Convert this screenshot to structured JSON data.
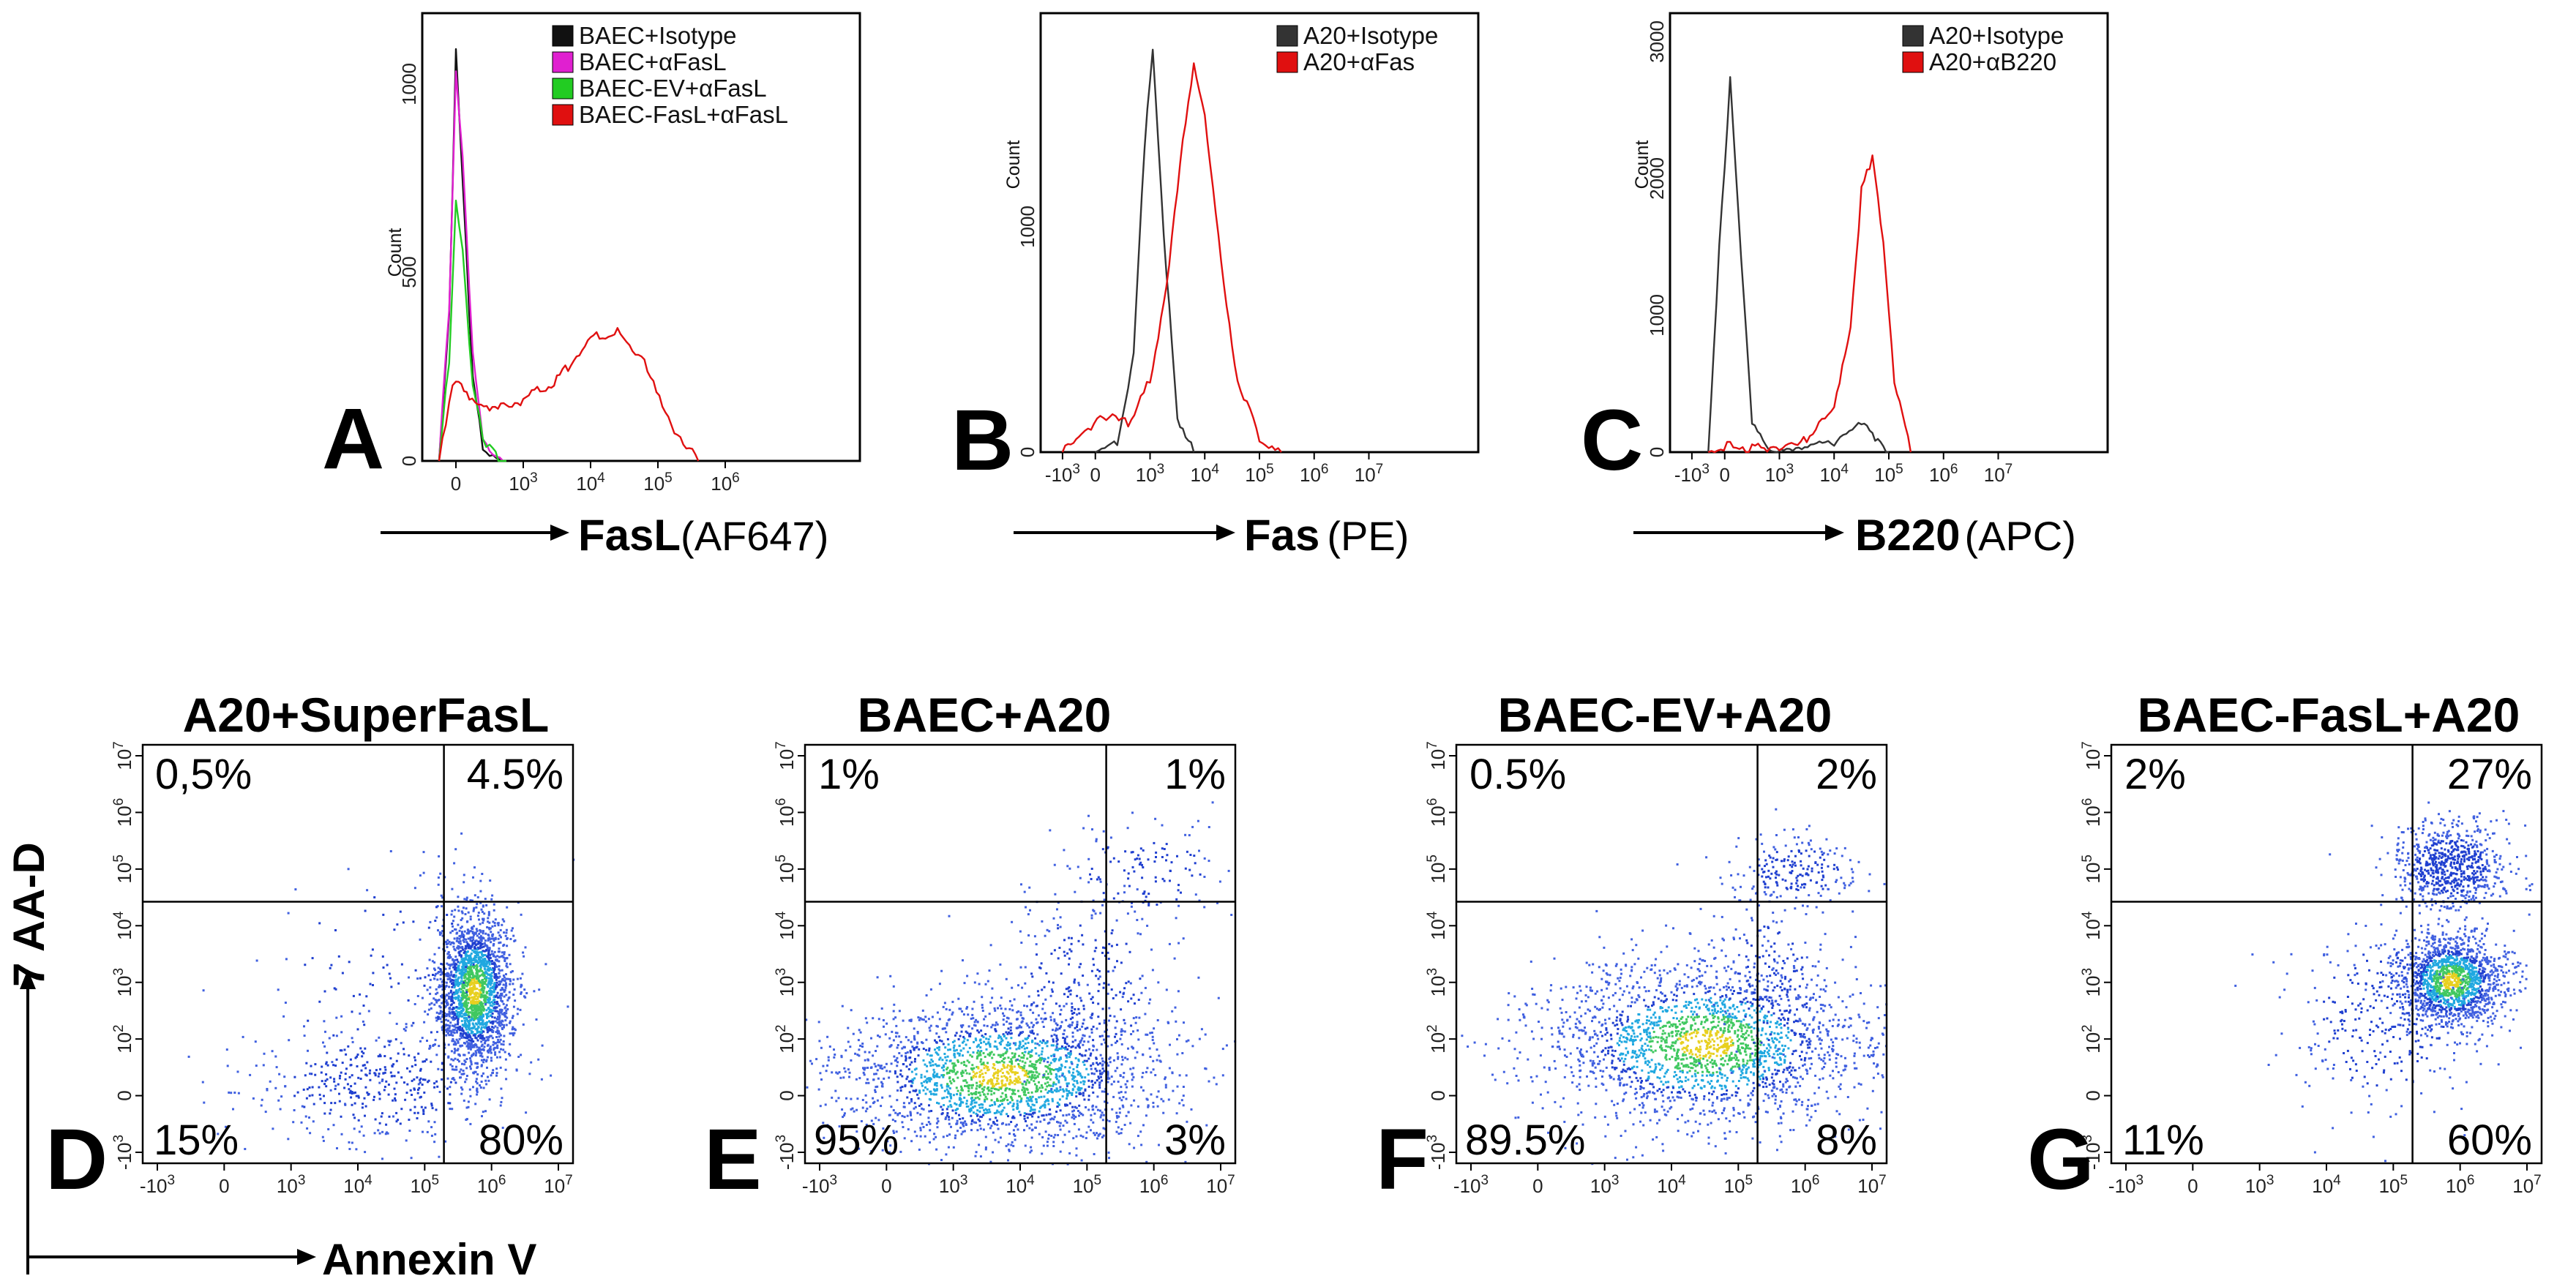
{
  "histograms": {
    "A": {
      "letter": "A",
      "x_title_bold": "FasL",
      "x_title_paren": "(AF647)",
      "y_label": "Count",
      "y_ticks": [
        "0",
        "500",
        "1000"
      ],
      "x_ticks": [
        "0",
        "10^3",
        "10^4",
        "10^5",
        "10^6"
      ],
      "legend": [
        {
          "label": "BAEC+Isotype",
          "color": "#111111"
        },
        {
          "label": "BAEC+αFasL",
          "color": "#e020d0"
        },
        {
          "label": "BAEC-EV+αFasL",
          "color": "#22cc22"
        },
        {
          "label": "BAEC-FasL+αFasL",
          "color": "#e01010"
        }
      ]
    },
    "B": {
      "letter": "B",
      "x_title_bold": "Fas",
      "x_title_paren": "(PE)",
      "y_label": "Count",
      "y_ticks": [
        "0",
        "1000"
      ],
      "x_ticks": [
        "-10^3",
        "0",
        "10^3",
        "10^4",
        "10^5",
        "10^6",
        "10^7"
      ],
      "legend": [
        {
          "label": "A20+Isotype",
          "color": "#333333"
        },
        {
          "label": "A20+αFas",
          "color": "#e01010"
        }
      ]
    },
    "C": {
      "letter": "C",
      "x_title_bold": "B220",
      "x_title_paren": "(APC)",
      "y_label": "Count",
      "y_ticks": [
        "0",
        "1000",
        "2000",
        "3000"
      ],
      "x_ticks": [
        "-10^3",
        "0",
        "10^3",
        "10^4",
        "10^5",
        "10^6",
        "10^7"
      ],
      "legend": [
        {
          "label": "A20+Isotype",
          "color": "#333333"
        },
        {
          "label": "A20+αB220",
          "color": "#e01010"
        }
      ]
    }
  },
  "scatter_axes": {
    "y_title": "7 AA-D",
    "x_title": "Annexin V",
    "y_ticks": [
      "-10^3",
      "0",
      "10^2",
      "10^3",
      "10^4",
      "10^5",
      "10^6",
      "10^7"
    ],
    "x_ticks": [
      "-10^3",
      "0",
      "10^3",
      "10^4",
      "10^5",
      "10^6",
      "10^7"
    ]
  },
  "scatters": {
    "D": {
      "letter": "D",
      "title": "A20+SuperFasL",
      "q_ul": "0,5%",
      "q_ur": "4.5%",
      "q_ll": "15%",
      "q_lr": "80%"
    },
    "E": {
      "letter": "E",
      "title": "BAEC+A20",
      "q_ul": "1%",
      "q_ur": "1%",
      "q_ll": "95%",
      "q_lr": "3%"
    },
    "F": {
      "letter": "F",
      "title": "BAEC-EV+A20",
      "q_ul": "0.5%",
      "q_ur": "2%",
      "q_ll": "89.5%",
      "q_lr": "8%"
    },
    "G": {
      "letter": "G",
      "title": "BAEC-FasL+A20",
      "q_ul": "2%",
      "q_ur": "27%",
      "q_ll": "11%",
      "q_lr": "60%"
    }
  },
  "chart_data": [
    {
      "type": "line",
      "panel": "A",
      "title": "",
      "xlabel": "FasL (AF647)",
      "ylabel": "Count",
      "xlim": [
        -0.5,
        6
      ],
      "ylim": [
        0,
        1100
      ],
      "x_scale": "log-decades (biexponential)",
      "series": [
        {
          "name": "BAEC+Isotype",
          "x": [
            -0.25,
            -0.1,
            0,
            0.1,
            0.25,
            0.4,
            0.55,
            0.7
          ],
          "values": [
            0,
            350,
            1000,
            700,
            200,
            40,
            10,
            0
          ]
        },
        {
          "name": "BAEC+αFasL",
          "x": [
            -0.25,
            -0.1,
            0,
            0.1,
            0.25,
            0.4,
            0.55,
            0.7
          ],
          "values": [
            0,
            380,
            960,
            750,
            260,
            60,
            15,
            0
          ]
        },
        {
          "name": "BAEC-EV+αFasL",
          "x": [
            -0.25,
            -0.1,
            0,
            0.1,
            0.25,
            0.4,
            0.55,
            0.75
          ],
          "values": [
            0,
            250,
            640,
            520,
            180,
            60,
            20,
            0
          ]
        },
        {
          "name": "BAEC-FasL+αFasL",
          "x": [
            -0.25,
            -0.1,
            0,
            0.2,
            0.5,
            1,
            1.5,
            2,
            2.4,
            2.8,
            3.2,
            3.6
          ],
          "values": [
            0,
            150,
            200,
            150,
            120,
            150,
            200,
            300,
            320,
            250,
            90,
            0
          ]
        }
      ]
    },
    {
      "type": "line",
      "panel": "B",
      "title": "",
      "xlabel": "Fas (PE)",
      "ylabel": "Count",
      "xlim": [
        -1,
        7
      ],
      "ylim": [
        0,
        1850
      ],
      "series": [
        {
          "name": "A20+Isotype",
          "x": [
            0,
            0.4,
            0.7,
            0.9,
            1.05,
            1.25,
            1.5,
            1.8
          ],
          "values": [
            0,
            40,
            400,
            1300,
            1680,
            900,
            150,
            0
          ]
        },
        {
          "name": "A20+αFas",
          "x": [
            -0.6,
            -0.3,
            0.2,
            0.6,
            1,
            1.3,
            1.6,
            1.8,
            2,
            2.3,
            2.6,
            3,
            3.4
          ],
          "values": [
            0,
            80,
            150,
            120,
            300,
            700,
            1300,
            1620,
            1400,
            800,
            300,
            60,
            0
          ]
        }
      ]
    },
    {
      "type": "line",
      "panel": "C",
      "title": "",
      "xlabel": "B220 (APC)",
      "ylabel": "Count",
      "xlim": [
        -1,
        7
      ],
      "ylim": [
        0,
        3200
      ],
      "series": [
        {
          "name": "A20+Isotype",
          "x": [
            -0.3,
            -0.1,
            0.1,
            0.3,
            0.5,
            0.8,
            1.3,
            2,
            2.5,
            2.8,
            3
          ],
          "values": [
            0,
            1500,
            2700,
            1400,
            200,
            20,
            30,
            80,
            200,
            100,
            0
          ]
        },
        {
          "name": "A20+αB220",
          "x": [
            -0.3,
            0.1,
            0.5,
            1,
            1.5,
            2,
            2.3,
            2.5,
            2.7,
            2.9,
            3.1,
            3.4
          ],
          "values": [
            0,
            60,
            20,
            50,
            100,
            300,
            900,
            1900,
            2150,
            1500,
            500,
            0
          ]
        }
      ]
    },
    {
      "type": "scatter",
      "panel": "D",
      "title": "A20+SuperFasL",
      "xlabel": "Annexin V",
      "ylabel": "7 AA-D",
      "xlim": [
        -1,
        7
      ],
      "ylim": [
        -1,
        7
      ],
      "gate": {
        "x": 4.6,
        "y": 4.0
      },
      "quadrants": {
        "UL": "0,5%",
        "UR": "4.5%",
        "LL": "15%",
        "LR": "80%"
      },
      "populations": [
        {
          "cx": 5.15,
          "cy": 2.3,
          "sx": 0.35,
          "sy": 0.75,
          "weight": 0.8
        },
        {
          "cx": 3.3,
          "cy": 0.5,
          "sx": 1.2,
          "sy": 0.6,
          "weight": 0.15
        },
        {
          "cx": 3.5,
          "cy": 2.5,
          "sx": 1.4,
          "sy": 1.3,
          "weight": 0.05
        }
      ]
    },
    {
      "type": "scatter",
      "panel": "E",
      "title": "BAEC+A20",
      "xlabel": "Annexin V",
      "ylabel": "7 AA-D",
      "xlim": [
        -1,
        7
      ],
      "ylim": [
        -1,
        7
      ],
      "gate": {
        "x": 4.6,
        "y": 4.0
      },
      "quadrants": {
        "UL": "1%",
        "UR": "1%",
        "LL": "95%",
        "LR": "3%"
      },
      "populations": [
        {
          "cx": 2.6,
          "cy": 0.7,
          "sx": 1.5,
          "sy": 0.7,
          "weight": 0.85
        },
        {
          "cx": 4.2,
          "cy": 2.4,
          "sx": 0.8,
          "sy": 1.0,
          "weight": 0.1
        },
        {
          "cx": 5.3,
          "cy": 4.6,
          "sx": 0.8,
          "sy": 0.5,
          "weight": 0.05
        }
      ]
    },
    {
      "type": "scatter",
      "panel": "F",
      "title": "BAEC-EV+A20",
      "xlabel": "Annexin V",
      "ylabel": "7 AA-D",
      "xlim": [
        -1,
        7
      ],
      "ylim": [
        -1,
        7
      ],
      "gate": {
        "x": 4.6,
        "y": 4.0
      },
      "quadrants": {
        "UL": "0.5%",
        "UR": "2%",
        "LL": "89.5%",
        "LR": "8%"
      },
      "populations": [
        {
          "cx": 3.6,
          "cy": 1.3,
          "sx": 1.5,
          "sy": 0.8,
          "weight": 0.85
        },
        {
          "cx": 5.3,
          "cy": 4.6,
          "sx": 0.6,
          "sy": 0.35,
          "weight": 0.08
        },
        {
          "cx": 4.8,
          "cy": 2.4,
          "sx": 0.6,
          "sy": 0.9,
          "weight": 0.07
        }
      ]
    },
    {
      "type": "scatter",
      "panel": "G",
      "title": "BAEC-FasL+A20",
      "xlabel": "Annexin V",
      "ylabel": "7 AA-D",
      "xlim": [
        -1,
        7
      ],
      "ylim": [
        -1,
        7
      ],
      "gate": {
        "x": 4.6,
        "y": 4.0
      },
      "quadrants": {
        "UL": "2%",
        "UR": "27%",
        "LL": "11%",
        "LR": "60%"
      },
      "populations": [
        {
          "cx": 5.3,
          "cy": 2.5,
          "sx": 0.5,
          "sy": 0.45,
          "weight": 0.6
        },
        {
          "cx": 5.3,
          "cy": 4.7,
          "sx": 0.5,
          "sy": 0.4,
          "weight": 0.28
        },
        {
          "cx": 4.0,
          "cy": 1.8,
          "sx": 0.9,
          "sy": 1.0,
          "weight": 0.12
        }
      ]
    }
  ]
}
